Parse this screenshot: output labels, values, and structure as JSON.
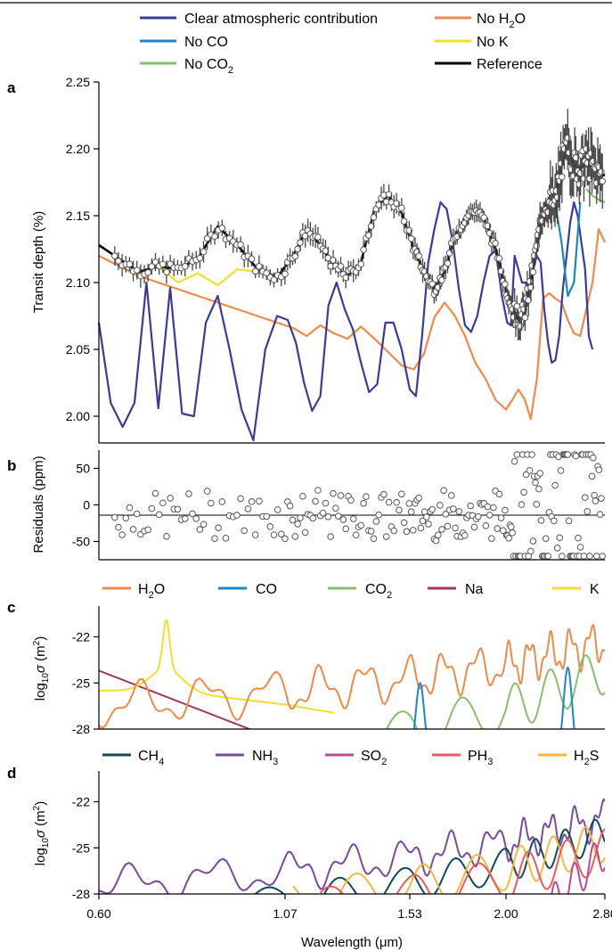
{
  "chart_data": [
    {
      "panel": "a",
      "type": "line",
      "ylabel": "Transit depth (%)",
      "xlabel": "",
      "ylim": [
        1.98,
        2.25
      ],
      "yticks": [
        "2.00",
        "2.05",
        "2.10",
        "2.15",
        "2.20",
        "2.25"
      ],
      "ytick_values": [
        2.0,
        2.05,
        2.1,
        2.15,
        2.2,
        2.25
      ],
      "legend": [
        "Clear atmospheric contribution",
        "No CO",
        "No CO2",
        "No H2O",
        "No K",
        "Reference"
      ],
      "legend_labels": [
        {
          "base": "Clear atmospheric contribution",
          "sub": ""
        },
        {
          "base": "No CO",
          "sub": ""
        },
        {
          "base": "No CO",
          "sub": "2"
        },
        {
          "base": "No H",
          "sub": "2",
          "tail": "O"
        },
        {
          "base": "No K",
          "sub": ""
        },
        {
          "base": "Reference",
          "sub": ""
        }
      ],
      "colors": {
        "clear": "#3a3a9c",
        "noCO": "#1c86c8",
        "noCO2": "#86c06a",
        "noH2O": "#ee8a4a",
        "noK": "#f0e02a",
        "reference": "#000000"
      },
      "series": [
        {
          "name": "Reference",
          "x": [
            0.6,
            0.7,
            0.75,
            0.8,
            0.85,
            0.9,
            0.95,
            1.0,
            1.05,
            1.1,
            1.15,
            1.2,
            1.25,
            1.3,
            1.35,
            1.4,
            1.45,
            1.5,
            1.55,
            1.6,
            1.65,
            1.7,
            1.75,
            1.8,
            1.85,
            1.9,
            1.95,
            2.0,
            2.05,
            2.1,
            2.15,
            2.2,
            2.25,
            2.3,
            2.35,
            2.4,
            2.45,
            2.5,
            2.55,
            2.6,
            2.65,
            2.7,
            2.75,
            2.8
          ],
          "y": [
            2.128,
            2.108,
            2.112,
            2.11,
            2.118,
            2.142,
            2.128,
            2.11,
            2.104,
            2.12,
            2.14,
            2.128,
            2.112,
            2.105,
            2.115,
            2.155,
            2.165,
            2.152,
            2.125,
            2.108,
            2.095,
            2.108,
            2.135,
            2.148,
            2.155,
            2.145,
            2.125,
            2.095,
            2.082,
            2.072,
            2.078,
            2.1,
            2.128,
            2.155,
            2.16,
            2.158,
            2.188,
            2.2,
            2.188,
            2.185,
            2.19,
            2.185,
            2.182,
            2.18
          ]
        },
        {
          "name": "Clear atmospheric contribution",
          "x": [
            0.6,
            0.63,
            0.66,
            0.69,
            0.72,
            0.75,
            0.78,
            0.81,
            0.84,
            0.87,
            0.9,
            0.93,
            0.96,
            0.99,
            1.02,
            1.05,
            1.08,
            1.11,
            1.14,
            1.17,
            1.2,
            1.23,
            1.26,
            1.29,
            1.32,
            1.35,
            1.38,
            1.41,
            1.44,
            1.47,
            1.5,
            1.53,
            1.56,
            1.59,
            1.62,
            1.65,
            1.68,
            1.71,
            1.74,
            1.77,
            1.8,
            1.83,
            1.86,
            1.89,
            1.92,
            1.95,
            1.98,
            2.01,
            2.04,
            2.07,
            2.1,
            2.13,
            2.16,
            2.19,
            2.22,
            2.25,
            2.28,
            2.31,
            2.34,
            2.37,
            2.4,
            2.43,
            2.46,
            2.49,
            2.52,
            2.55,
            2.58,
            2.61,
            2.64,
            2.67,
            2.7
          ],
          "y": [
            2.07,
            2.01,
            1.992,
            2.01,
            2.1,
            2.006,
            2.096,
            2.002,
            2.0,
            2.07,
            2.09,
            2.05,
            2.005,
            1.982,
            2.05,
            2.075,
            2.072,
            2.055,
            2.025,
            2.004,
            2.015,
            2.083,
            2.1,
            2.08,
            2.065,
            2.04,
            2.018,
            2.024,
            2.07,
            2.07,
            2.05,
            2.02,
            2.015,
            2.06,
            2.115,
            2.14,
            2.16,
            2.155,
            2.13,
            2.095,
            2.068,
            2.063,
            2.075,
            2.1,
            2.12,
            2.124,
            2.09,
            2.07,
            2.068,
            2.12,
            2.11,
            2.1,
            2.1,
            2.085,
            2.11,
            2.12,
            2.115,
            2.08,
            2.055,
            2.04,
            2.042,
            2.06,
            2.095,
            2.12,
            2.145,
            2.16,
            2.15,
            2.13,
            2.11,
            2.06,
            2.05
          ]
        },
        {
          "name": "No H2O",
          "x": [
            0.6,
            0.7,
            0.8,
            0.9,
            1.0,
            1.05,
            1.1,
            1.15,
            1.2,
            1.25,
            1.3,
            1.35,
            1.4,
            1.45,
            1.5,
            1.55,
            1.6,
            1.65,
            1.7,
            1.75,
            1.8,
            1.85,
            1.9,
            1.95,
            2.0,
            2.05,
            2.1,
            2.15,
            2.2,
            2.25,
            2.3,
            2.35,
            2.4,
            2.45,
            2.5,
            2.55,
            2.6,
            2.65,
            2.7,
            2.75,
            2.8
          ],
          "y": [
            2.12,
            2.105,
            2.095,
            2.085,
            2.075,
            2.07,
            2.066,
            2.06,
            2.068,
            2.062,
            2.058,
            2.067,
            2.058,
            2.048,
            2.038,
            2.035,
            2.047,
            2.074,
            2.085,
            2.075,
            2.06,
            2.04,
            2.028,
            2.012,
            2.005,
            2.012,
            2.02,
            2.013,
            1.998,
            2.028,
            2.088,
            2.092,
            2.088,
            2.085,
            2.072,
            2.062,
            2.06,
            2.08,
            2.1,
            2.14,
            2.13
          ]
        },
        {
          "name": "No K",
          "x": [
            0.6,
            0.7,
            0.75,
            0.8,
            0.85,
            0.9,
            0.95,
            1.0
          ],
          "y": [
            2.128,
            2.108,
            2.112,
            2.1,
            2.107,
            2.098,
            2.11,
            2.108
          ]
        },
        {
          "name": "No CO",
          "x": [
            2.4,
            2.45,
            2.5,
            2.55,
            2.6
          ],
          "y": [
            2.158,
            2.13,
            2.09,
            2.1,
            2.16
          ]
        },
        {
          "name": "No CO2",
          "x": [
            2.65,
            2.7,
            2.75,
            2.8
          ],
          "y": [
            2.17,
            2.165,
            2.162,
            2.16
          ]
        }
      ]
    },
    {
      "panel": "b",
      "type": "scatter",
      "ylabel": "Residuals (ppm)",
      "ylim": [
        -75,
        75
      ],
      "yticks": [
        "50",
        "0",
        "-50"
      ],
      "ytick_values": [
        50,
        0,
        -50
      ],
      "xlabel": ""
    },
    {
      "panel": "c",
      "type": "line",
      "ylabel_base": "log",
      "ylabel_sub": "10",
      "ylabel_sigma": "σ",
      "ylabel_unit": " (m",
      "ylabel_sup": "2",
      "ylabel_close": ")",
      "ylim": [
        -28,
        -20
      ],
      "yticks": [
        "-22",
        "-25",
        "-28"
      ],
      "ytick_values": [
        -22,
        -25,
        -28
      ],
      "legend_labels": [
        {
          "base": "H",
          "sub": "2",
          "tail": "O"
        },
        {
          "base": "CO",
          "sub": ""
        },
        {
          "base": "CO",
          "sub": "2"
        },
        {
          "base": "Na",
          "sub": ""
        },
        {
          "base": "K",
          "sub": ""
        }
      ],
      "colors": [
        "#ee8a4a",
        "#1c86c8",
        "#86c06a",
        "#a0385c",
        "#f0e02a"
      ]
    },
    {
      "panel": "d",
      "type": "line",
      "ylabel_base": "log",
      "ylabel_sub": "10",
      "ylabel_sigma": "σ",
      "ylabel_unit": " (m",
      "ylabel_sup": "2",
      "ylabel_close": ")",
      "ylim": [
        -28,
        -20
      ],
      "yticks": [
        "-22",
        "-25",
        "-28"
      ],
      "ytick_values": [
        -22,
        -25,
        -28
      ],
      "legend_labels": [
        {
          "base": "CH",
          "sub": "4"
        },
        {
          "base": "NH",
          "sub": "3"
        },
        {
          "base": "SO",
          "sub": "2"
        },
        {
          "base": "PH",
          "sub": "3"
        },
        {
          "base": "H",
          "sub": "2",
          "tail": "S"
        }
      ],
      "colors": [
        "#0f4a5c",
        "#7b4a9c",
        "#b84a94",
        "#ee5a5a",
        "#f5b83a"
      ],
      "xlabel": "Wavelength (μm)",
      "xticks": [
        "0.60",
        "1.07",
        "1.53",
        "2.00",
        "2.80"
      ],
      "xtick_values": [
        0.6,
        1.07,
        1.53,
        2.0,
        2.8
      ]
    }
  ]
}
